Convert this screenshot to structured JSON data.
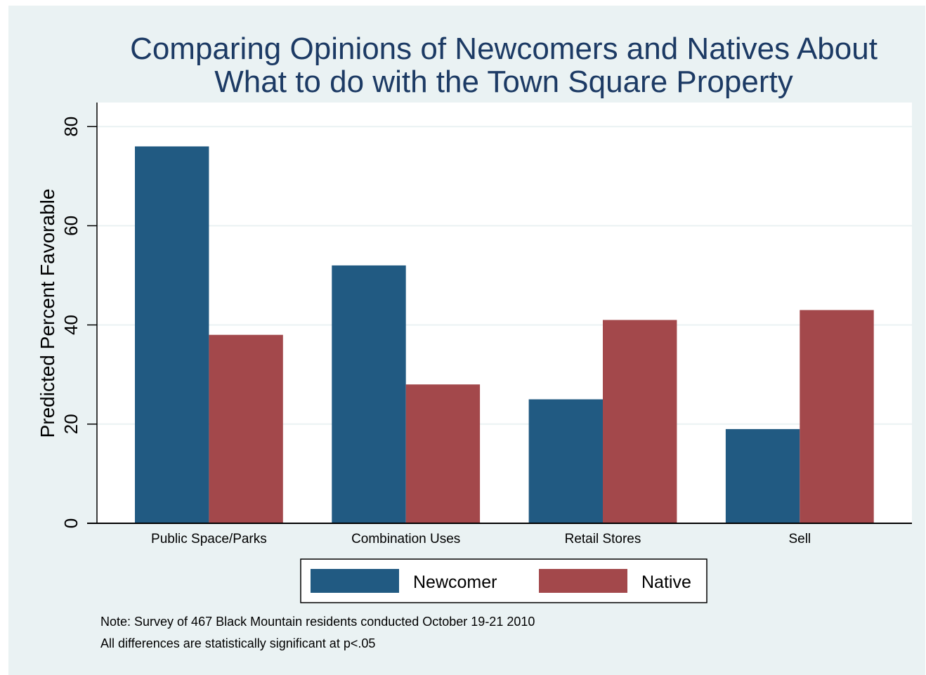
{
  "chart_data": {
    "type": "bar",
    "title_lines": [
      "Comparing Opinions of  Newcomers and Natives About",
      "What to do with the Town Square Property"
    ],
    "ylabel": "Predicted Percent Favorable",
    "xlabel": "",
    "ylim": [
      0,
      85
    ],
    "yticks": [
      "0",
      "20",
      "40",
      "60",
      "80"
    ],
    "ytick_values": [
      0,
      20,
      40,
      60,
      80
    ],
    "grid": true,
    "categories": [
      "Public Space/Parks",
      "Combination Uses",
      "Retail Stores",
      "Sell"
    ],
    "series": [
      {
        "name": "Newcomer",
        "color": "#215a82",
        "values": [
          76,
          52,
          25,
          19
        ]
      },
      {
        "name": "Native",
        "color": "#a3484b",
        "values": [
          38,
          28,
          41,
          43
        ]
      }
    ],
    "legend_position": "bottom",
    "notes": [
      "Note: Survey of 467 Black Mountain residents conducted October 19-21 2010",
      "All differences are statistically significant at p<.05"
    ]
  }
}
